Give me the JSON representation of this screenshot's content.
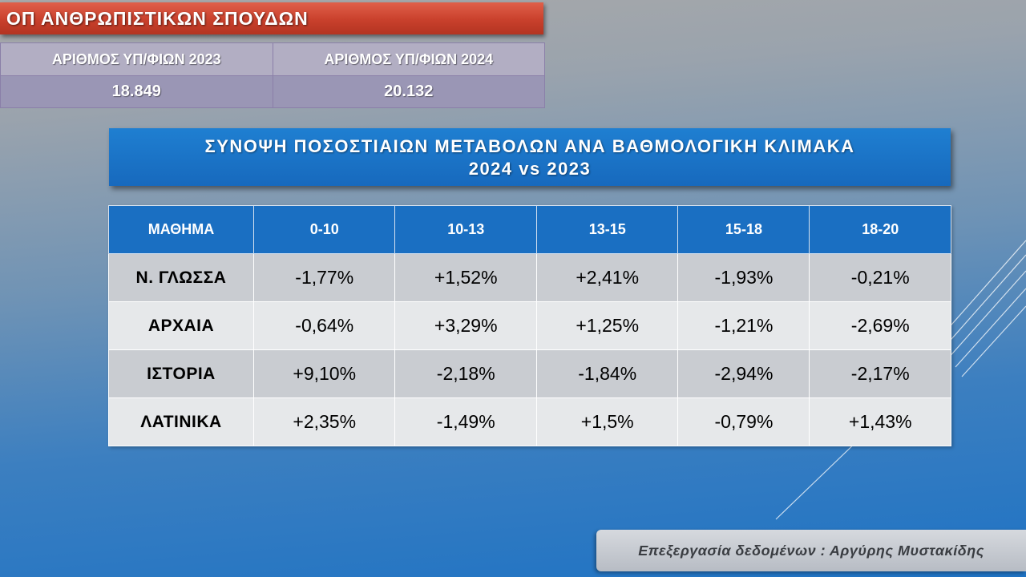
{
  "header": {
    "title": "ΟΠ ΑΝΘΡΩΠΙΣΤΙΚΩΝ ΣΠΟΥΔΩΝ"
  },
  "counts": {
    "label_2023": "ΑΡΙΘΜΟΣ ΥΠ/ΦΙΩΝ 2023",
    "label_2024": "ΑΡΙΘΜΟΣ ΥΠ/ΦΙΩΝ 2024",
    "value_2023": "18.849",
    "value_2024": "20.132"
  },
  "summary": {
    "line1": "ΣΥΝΟΨΗ ΠΟΣΟΣΤΙΑΙΩΝ ΜΕΤΑΒΟΛΩΝ ΑΝΑ ΒΑΘΜΟΛΟΓΙΚΗ ΚΛΙΜΑΚΑ",
    "line2": "2024 vs 2023"
  },
  "table": {
    "headers": [
      "ΜΑΘΗΜΑ",
      "0-10",
      "10-13",
      "13-15",
      "15-18",
      "18-20"
    ],
    "rows": [
      {
        "subject": "Ν. ΓΛΩΣΣΑ",
        "values": [
          "-1,77%",
          "+1,52%",
          "+2,41%",
          "-1,93%",
          "-0,21%"
        ]
      },
      {
        "subject": "ΑΡΧΑΙΑ",
        "values": [
          "-0,64%",
          "+3,29%",
          "+1,25%",
          "-1,21%",
          "-2,69%"
        ]
      },
      {
        "subject": "ΙΣΤΟΡΙΑ",
        "values": [
          "+9,10%",
          "-2,18%",
          "-1,84%",
          "-2,94%",
          "-2,17%"
        ]
      },
      {
        "subject": "ΛΑΤΙΝΙΚΑ",
        "values": [
          "+2,35%",
          "-1,49%",
          "+1,5%",
          "-0,79%",
          "+1,43%"
        ]
      }
    ]
  },
  "footer": {
    "credit": "Επεξεργασία δεδομένων : Αργύρης Μυστακίδης"
  },
  "colors": {
    "title_red": "#c9402c",
    "header_blue": "#1a6fc2",
    "row_dark": "#c9ccd1",
    "row_light": "#e6e8ea"
  }
}
